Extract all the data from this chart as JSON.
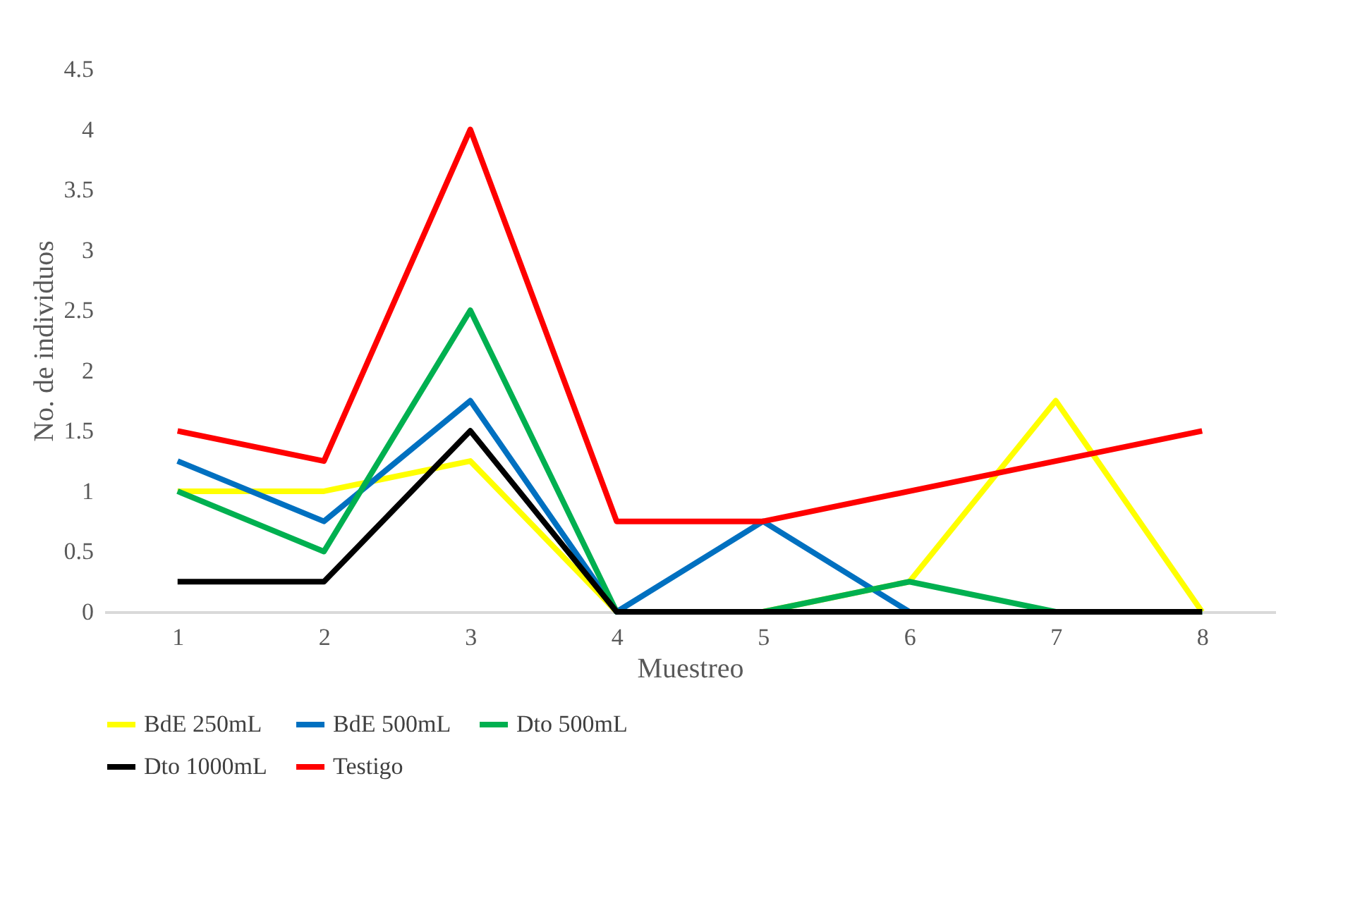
{
  "chart_data": {
    "type": "line",
    "xlabel": "Muestreo",
    "ylabel": "No. de individuos",
    "categories": [
      "1",
      "2",
      "3",
      "4",
      "5",
      "6",
      "7",
      "8"
    ],
    "series": [
      {
        "name": "BdE 250mL",
        "color": "#ffff00",
        "values": [
          1,
          1,
          1.25,
          0,
          0,
          0.25,
          1.75,
          0
        ]
      },
      {
        "name": "BdE 500mL",
        "color": "#0070c0",
        "values": [
          1.25,
          0.75,
          1.75,
          0,
          0.75,
          0,
          0,
          0
        ]
      },
      {
        "name": "Dto 500mL",
        "color": "#00b050",
        "values": [
          1,
          0.5,
          2.5,
          0,
          0,
          0.25,
          0,
          0
        ]
      },
      {
        "name": "Dto 1000mL",
        "color": "#000000",
        "values": [
          0.25,
          0.25,
          1.5,
          0,
          0,
          0,
          0,
          0
        ]
      },
      {
        "name": "Testigo",
        "color": "#ff0000",
        "values": [
          1.5,
          1.25,
          4,
          0.75,
          0.75,
          1,
          1.25,
          1.5
        ]
      }
    ],
    "ylim": [
      0,
      4.5
    ],
    "yticks": [
      0,
      0.5,
      1,
      1.5,
      2,
      2.5,
      3,
      3.5,
      4,
      4.5
    ],
    "grid": false,
    "legend": "bottom",
    "marker": "none",
    "line_style": "solid"
  }
}
